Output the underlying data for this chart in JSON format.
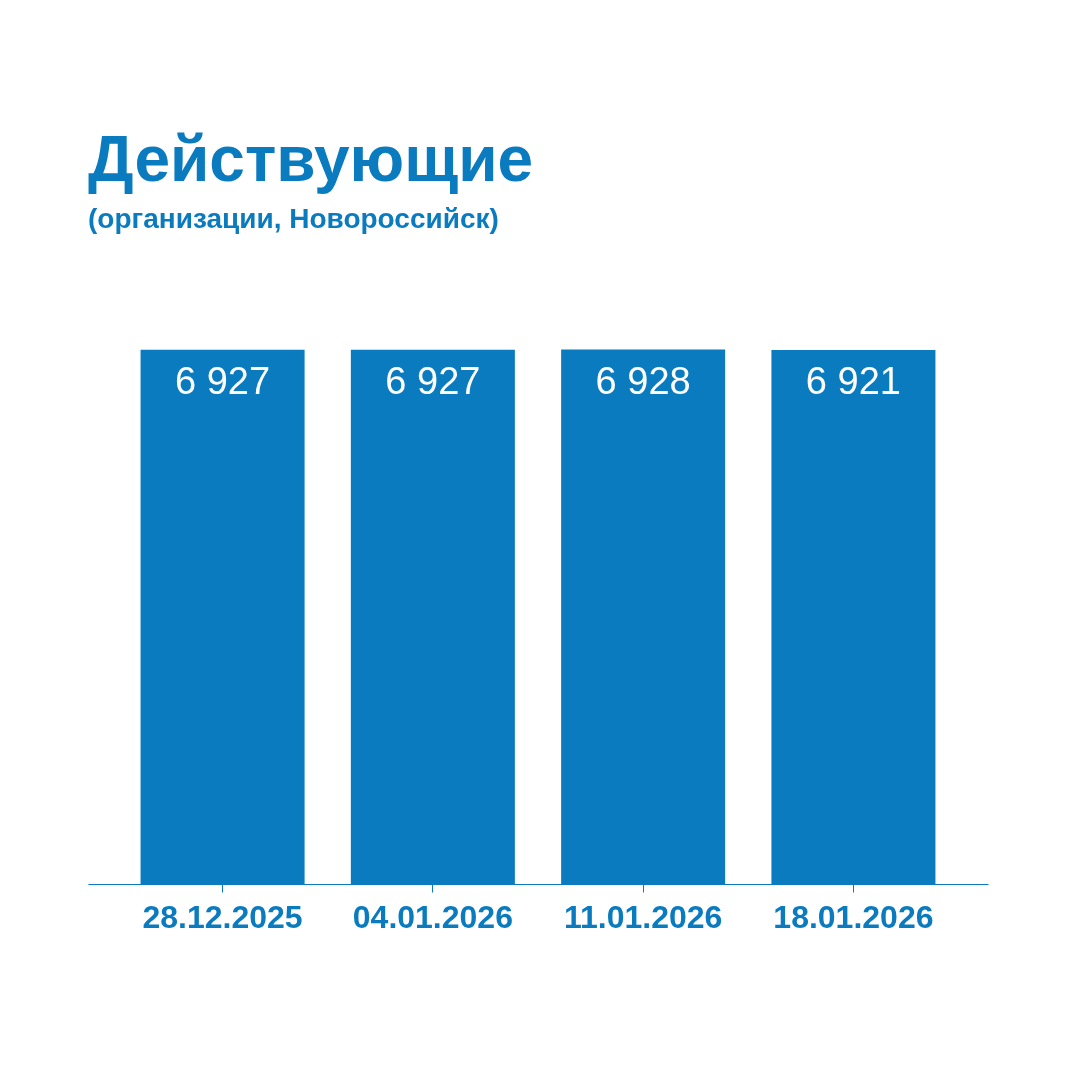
{
  "chart_data": {
    "type": "bar",
    "title": "Действующие",
    "subtitle": "(организации, Новороссийск)",
    "categories": [
      "28.12.2025",
      "04.01.2026",
      "11.01.2026",
      "18.01.2026"
    ],
    "values": [
      6927,
      6927,
      6928,
      6921
    ],
    "value_labels": [
      "6 927",
      "6 927",
      "6 928",
      "6 921"
    ],
    "color": "#0a7bbf",
    "tick_labels": "x",
    "grid": false
  }
}
